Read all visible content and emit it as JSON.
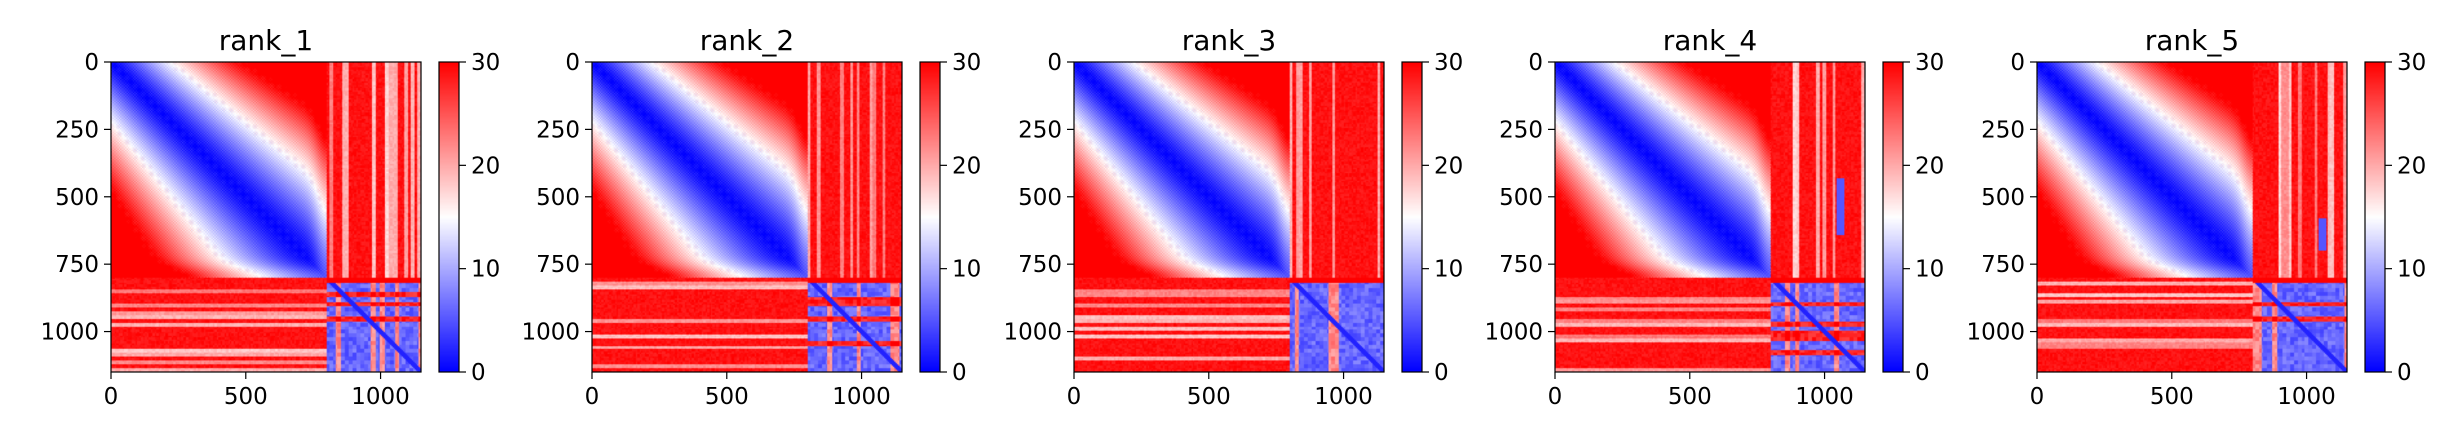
{
  "chart_data": [
    {
      "type": "heatmap",
      "title": "rank_1",
      "xlim": [
        0,
        1150
      ],
      "ylim": [
        1150,
        0
      ],
      "x_ticks": [
        0,
        500,
        1000
      ],
      "y_ticks": [
        0,
        250,
        500,
        750,
        1000
      ],
      "colorbar": {
        "cmap": "bwr",
        "vmin": 0,
        "vmax": 30,
        "ticks": [
          0,
          10,
          20,
          30
        ]
      },
      "blocks": [
        [
          0,
          800
        ],
        [
          800,
          1150
        ]
      ],
      "blue_pockets": []
    },
    {
      "type": "heatmap",
      "title": "rank_2",
      "xlim": [
        0,
        1150
      ],
      "ylim": [
        1150,
        0
      ],
      "x_ticks": [
        0,
        500,
        1000
      ],
      "y_ticks": [
        0,
        250,
        500,
        750,
        1000
      ],
      "colorbar": {
        "cmap": "bwr",
        "vmin": 0,
        "vmax": 30,
        "ticks": [
          0,
          10,
          20,
          30
        ]
      },
      "blocks": [
        [
          0,
          800
        ],
        [
          800,
          1150
        ]
      ],
      "blue_pockets": []
    },
    {
      "type": "heatmap",
      "title": "rank_3",
      "xlim": [
        0,
        1150
      ],
      "ylim": [
        1150,
        0
      ],
      "x_ticks": [
        0,
        500,
        1000
      ],
      "y_ticks": [
        0,
        250,
        500,
        750,
        1000
      ],
      "colorbar": {
        "cmap": "bwr",
        "vmin": 0,
        "vmax": 30,
        "ticks": [
          0,
          10,
          20,
          30
        ]
      },
      "blocks": [
        [
          0,
          800
        ],
        [
          800,
          1150
        ]
      ],
      "blue_pockets": []
    },
    {
      "type": "heatmap",
      "title": "rank_4",
      "xlim": [
        0,
        1150
      ],
      "ylim": [
        1150,
        0
      ],
      "x_ticks": [
        0,
        500,
        1000
      ],
      "y_ticks": [
        0,
        250,
        500,
        750,
        1000
      ],
      "colorbar": {
        "cmap": "bwr",
        "vmin": 0,
        "vmax": 30,
        "ticks": [
          0,
          10,
          20,
          30
        ]
      },
      "blocks": [
        [
          0,
          800
        ],
        [
          800,
          1150
        ]
      ],
      "blue_pockets": [
        [
          1060,
          430,
          640
        ]
      ]
    },
    {
      "type": "heatmap",
      "title": "rank_5",
      "xlim": [
        0,
        1150
      ],
      "ylim": [
        1150,
        0
      ],
      "x_ticks": [
        0,
        500,
        1000
      ],
      "y_ticks": [
        0,
        250,
        500,
        750,
        1000
      ],
      "colorbar": {
        "cmap": "bwr",
        "vmin": 0,
        "vmax": 30,
        "ticks": [
          0,
          10,
          20,
          30
        ]
      },
      "blocks": [
        [
          0,
          800
        ],
        [
          800,
          1150
        ]
      ],
      "blue_pockets": [
        [
          1060,
          580,
          700
        ]
      ]
    }
  ]
}
